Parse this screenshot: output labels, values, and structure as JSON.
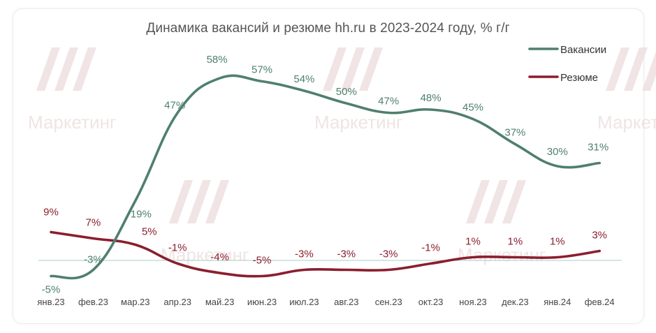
{
  "colors": {
    "vacancies": "#4f7f6f",
    "resumes": "#8b1e2d",
    "baseline": "#b9d6d3",
    "watermark": "#ecdcdc"
  },
  "watermark": {
    "text": "Маркетинг"
  },
  "chart_data": {
    "type": "line",
    "title": "Динамика вакансий и резюме hh.ru в 2023-2024 году, % г/г",
    "xlabel": "",
    "ylabel": "",
    "categories": [
      "янв.23",
      "фев.23",
      "мар.23",
      "апр.23",
      "май.23",
      "июн.23",
      "июл.23",
      "авг.23",
      "сен.23",
      "окт.23",
      "ноя.23",
      "дек.23",
      "янв.24",
      "фев.24"
    ],
    "ylim": [
      -6,
      62
    ],
    "grid": false,
    "legend_position": "top-right",
    "series": [
      {
        "name": "Вакансии",
        "color": "#4f7f6f",
        "values": [
          -5,
          -3,
          19,
          47,
          58,
          57,
          54,
          50,
          47,
          48,
          45,
          37,
          30,
          31
        ],
        "labels": [
          "-5%",
          "-3%",
          "19%",
          "47%",
          "58%",
          "57%",
          "54%",
          "50%",
          "47%",
          "48%",
          "45%",
          "37%",
          "30%",
          "31%"
        ]
      },
      {
        "name": "Резюме",
        "color": "#8b1e2d",
        "values": [
          9,
          7,
          5,
          -1,
          -4,
          -5,
          -3,
          -3,
          -3,
          -1,
          1,
          1,
          1,
          3
        ],
        "labels": [
          "9%",
          "7%",
          "5%",
          "-1%",
          "-4%",
          "-5%",
          "-3%",
          "-3%",
          "-3%",
          "-1%",
          "1%",
          "1%",
          "1%",
          "3%"
        ]
      }
    ]
  }
}
